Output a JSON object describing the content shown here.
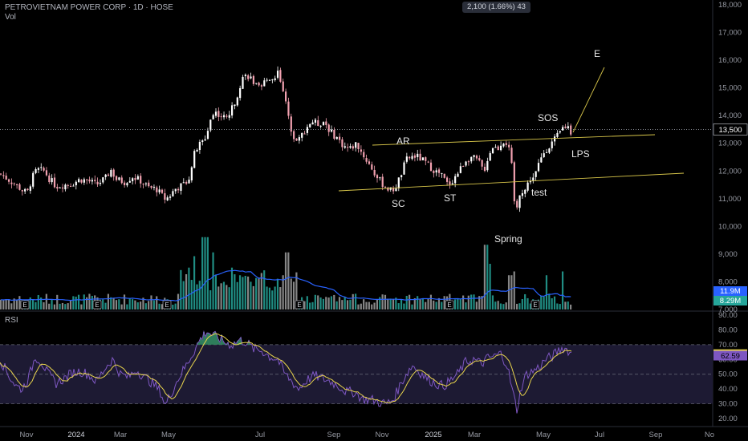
{
  "header": {
    "symbol_line": "PETROVIETNAM POWER CORP · 1D · HOSE",
    "vol_label": "Vol",
    "rsi_label": "RSI",
    "crosshair_info": "2,100 (1.66%) 43"
  },
  "colors": {
    "background": "#000000",
    "up": "#ffffff",
    "down": "#f2a1b0",
    "vol_up": "#26a69a",
    "vol_down": "#9e9e9e",
    "vol_ma": "#2962ff",
    "rsi": "#7e57c2",
    "rsi_ma": "#e8d44d",
    "rsi_band": "#1d1a33",
    "trendline": "#d8c64a",
    "label_text": "#e6e6e6",
    "axis_text": "#9598a1"
  },
  "chart_data": {
    "type": "candlestick",
    "price_axis": {
      "min": 7000,
      "max": 18000,
      "ticks": [
        "18,000",
        "17,000",
        "16,000",
        "15,000",
        "14,000",
        "13,000",
        "12,000",
        "11,000",
        "10,000",
        "9,000",
        "8,000",
        "7,000"
      ]
    },
    "last_price": {
      "label": "13,500",
      "value": 13500
    },
    "volume_badges": [
      {
        "label": "11.9M",
        "color": "#2962ff"
      },
      {
        "label": "8.29M",
        "color": "#26a69a"
      }
    ],
    "rsi_axis": {
      "min": 20,
      "max": 90,
      "ticks": [
        "90.00",
        "80.00",
        "70.00",
        "60.00",
        "50.00",
        "40.00",
        "30.00",
        "20.00"
      ],
      "band": [
        30,
        70
      ]
    },
    "rsi_badges": [
      {
        "label": "63.57",
        "value": 63.57,
        "color": "#e8d44d"
      },
      {
        "label": "62.59",
        "value": 62.59,
        "color": "#7e57c2"
      }
    ],
    "x_labels": [
      "Nov",
      "2024",
      "Mar",
      "May",
      "Jul",
      "Sep",
      "Nov",
      "2025",
      "Mar",
      "May",
      "Jul",
      "Sep",
      "No"
    ],
    "price_path": [
      [
        0,
        11900
      ],
      [
        10,
        11700
      ],
      [
        20,
        11500
      ],
      [
        28,
        11300
      ],
      [
        34,
        11200
      ],
      [
        40,
        11750
      ],
      [
        46,
        12050
      ],
      [
        55,
        12000
      ],
      [
        62,
        11700
      ],
      [
        70,
        11450
      ],
      [
        80,
        11500
      ],
      [
        90,
        11550
      ],
      [
        100,
        11700
      ],
      [
        110,
        11650
      ],
      [
        120,
        11500
      ],
      [
        132,
        11750
      ],
      [
        138,
        12050
      ],
      [
        145,
        11700
      ],
      [
        155,
        11600
      ],
      [
        165,
        11800
      ],
      [
        175,
        11650
      ],
      [
        185,
        11400
      ],
      [
        195,
        11350
      ],
      [
        205,
        11000
      ],
      [
        210,
        11050
      ],
      [
        218,
        11350
      ],
      [
        228,
        11500
      ],
      [
        236,
        11800
      ],
      [
        242,
        12600
      ],
      [
        248,
        12950
      ],
      [
        255,
        13100
      ],
      [
        262,
        13850
      ],
      [
        268,
        14150
      ],
      [
        275,
        14000
      ],
      [
        282,
        13900
      ],
      [
        290,
        14300
      ],
      [
        296,
        14800
      ],
      [
        302,
        15400
      ],
      [
        310,
        15450
      ],
      [
        318,
        15100
      ],
      [
        325,
        14900
      ],
      [
        332,
        15400
      ],
      [
        340,
        15300
      ],
      [
        346,
        15600
      ],
      [
        352,
        15100
      ],
      [
        358,
        14100
      ],
      [
        365,
        13300
      ],
      [
        372,
        13100
      ],
      [
        380,
        13500
      ],
      [
        388,
        13800
      ],
      [
        396,
        13700
      ],
      [
        404,
        13800
      ],
      [
        412,
        13400
      ],
      [
        420,
        13200
      ],
      [
        428,
        12900
      ],
      [
        436,
        12800
      ],
      [
        444,
        13000
      ],
      [
        452,
        12600
      ],
      [
        462,
        12150
      ],
      [
        470,
        11750
      ],
      [
        478,
        11500
      ],
      [
        486,
        11300
      ],
      [
        492,
        11350
      ],
      [
        500,
        11900
      ],
      [
        506,
        12400
      ],
      [
        512,
        12500
      ],
      [
        518,
        12550
      ],
      [
        526,
        12400
      ],
      [
        534,
        12200
      ],
      [
        542,
        12000
      ],
      [
        550,
        11850
      ],
      [
        558,
        11500
      ],
      [
        565,
        11700
      ],
      [
        572,
        12000
      ],
      [
        580,
        12400
      ],
      [
        588,
        12500
      ],
      [
        596,
        12350
      ],
      [
        603,
        12000
      ],
      [
        608,
        12500
      ],
      [
        614,
        12900
      ],
      [
        620,
        12800
      ],
      [
        626,
        13100
      ],
      [
        632,
        13000
      ],
      [
        637,
        12400
      ],
      [
        640,
        11000
      ],
      [
        644,
        10600
      ],
      [
        648,
        11300
      ],
      [
        654,
        11300
      ],
      [
        660,
        11700
      ],
      [
        666,
        11800
      ],
      [
        672,
        12300
      ],
      [
        678,
        12700
      ],
      [
        684,
        12900
      ],
      [
        690,
        13100
      ],
      [
        696,
        13300
      ],
      [
        702,
        13600
      ],
      [
        708,
        13600
      ],
      [
        713,
        13300
      ]
    ],
    "rsi_path": [
      [
        0,
        60
      ],
      [
        10,
        50
      ],
      [
        20,
        42
      ],
      [
        28,
        40
      ],
      [
        36,
        48
      ],
      [
        44,
        62
      ],
      [
        52,
        58
      ],
      [
        60,
        50
      ],
      [
        70,
        44
      ],
      [
        80,
        47
      ],
      [
        90,
        51
      ],
      [
        100,
        52
      ],
      [
        110,
        50
      ],
      [
        120,
        45
      ],
      [
        132,
        55
      ],
      [
        140,
        60
      ],
      [
        150,
        50
      ],
      [
        160,
        48
      ],
      [
        170,
        53
      ],
      [
        180,
        48
      ],
      [
        190,
        44
      ],
      [
        200,
        38
      ],
      [
        206,
        29
      ],
      [
        214,
        38
      ],
      [
        222,
        47
      ],
      [
        232,
        56
      ],
      [
        242,
        66
      ],
      [
        250,
        74
      ],
      [
        258,
        79
      ],
      [
        266,
        76
      ],
      [
        274,
        74
      ],
      [
        282,
        71
      ],
      [
        290,
        70
      ],
      [
        298,
        73
      ],
      [
        306,
        72
      ],
      [
        316,
        67
      ],
      [
        326,
        66
      ],
      [
        336,
        62
      ],
      [
        346,
        60
      ],
      [
        354,
        51
      ],
      [
        362,
        46
      ],
      [
        372,
        40
      ],
      [
        382,
        46
      ],
      [
        392,
        49
      ],
      [
        402,
        47
      ],
      [
        412,
        45
      ],
      [
        422,
        42
      ],
      [
        432,
        38
      ],
      [
        442,
        38
      ],
      [
        452,
        33
      ],
      [
        462,
        33
      ],
      [
        472,
        31
      ],
      [
        482,
        30
      ],
      [
        490,
        33
      ],
      [
        498,
        42
      ],
      [
        506,
        50
      ],
      [
        514,
        56
      ],
      [
        522,
        52
      ],
      [
        532,
        47
      ],
      [
        542,
        44
      ],
      [
        552,
        42
      ],
      [
        560,
        45
      ],
      [
        570,
        50
      ],
      [
        580,
        58
      ],
      [
        590,
        60
      ],
      [
        600,
        57
      ],
      [
        608,
        61
      ],
      [
        616,
        62
      ],
      [
        624,
        64
      ],
      [
        632,
        56
      ],
      [
        638,
        40
      ],
      [
        644,
        26
      ],
      [
        650,
        42
      ],
      [
        656,
        50
      ],
      [
        664,
        52
      ],
      [
        672,
        55
      ],
      [
        680,
        60
      ],
      [
        688,
        62
      ],
      [
        696,
        66
      ],
      [
        702,
        68
      ],
      [
        708,
        66
      ],
      [
        713,
        63
      ]
    ],
    "annotations": [
      {
        "text": "AR",
        "x": 494,
        "y": 180
      },
      {
        "text": "SC",
        "x": 488,
        "y": 258
      },
      {
        "text": "ST",
        "x": 553,
        "y": 251
      },
      {
        "text": "Spring",
        "x": 616,
        "y": 302
      },
      {
        "text": "test",
        "x": 662,
        "y": 244
      },
      {
        "text": "SOS",
        "x": 670,
        "y": 151
      },
      {
        "text": "LPS",
        "x": 712,
        "y": 196
      },
      {
        "text": "E",
        "x": 740,
        "y": 71
      }
    ]
  }
}
